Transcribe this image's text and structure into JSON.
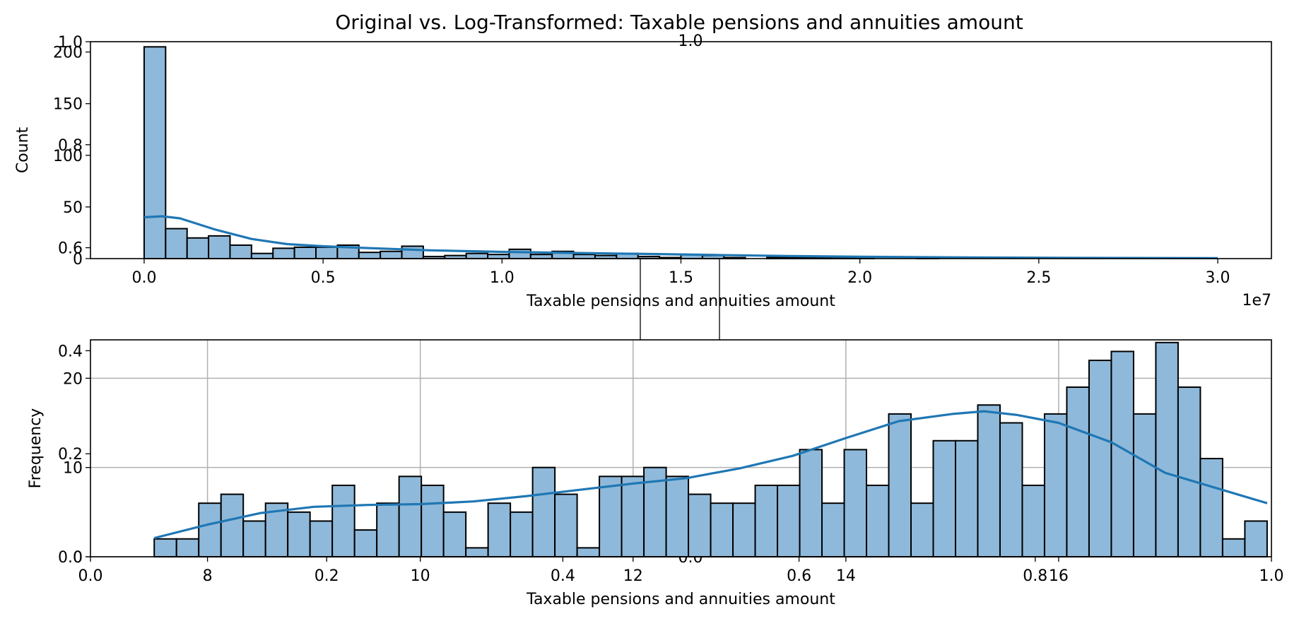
{
  "figure": {
    "title": "Original vs. Log-Transformed: Taxable pensions and annuities amount"
  },
  "background_axes": {
    "yticks": [
      "0.0",
      "0.2",
      "0.4",
      "0.6",
      "0.8",
      "1.0"
    ],
    "xticks": [
      "0.0",
      "0.2",
      "0.4",
      "0.6",
      "0.8",
      "1.0"
    ],
    "mid_xtick": "0.0",
    "mid_top_label": "1.0"
  },
  "colors": {
    "bar_fill": "#8fb9da",
    "bar_edge": "#000000",
    "kde_line": "#1f77b4",
    "grid": "#b0b0b0"
  },
  "chart_data": [
    {
      "type": "bar",
      "title": "",
      "xlabel": "Taxable pensions and annuities amount",
      "ylabel": "Count",
      "x_scale_label": "1e7",
      "xlim": [
        -0.15,
        3.15
      ],
      "ylim": [
        0,
        210
      ],
      "xticks": [
        0.0,
        0.5,
        1.0,
        1.5,
        2.0,
        2.5,
        3.0
      ],
      "xtick_labels": [
        "0.0",
        "0.5",
        "1.0",
        "1.5",
        "2.0",
        "2.5",
        "3.0"
      ],
      "yticks": [
        0,
        50,
        100,
        150,
        200
      ],
      "ytick_labels": [
        "0",
        "50",
        "100",
        "150",
        "200"
      ],
      "grid": false,
      "bin_start": 0.0,
      "bin_width": 0.06,
      "values": [
        205,
        29,
        20,
        22,
        13,
        5,
        10,
        11,
        11,
        13,
        6,
        7,
        12,
        2,
        3,
        5,
        4,
        9,
        4,
        7,
        4,
        3,
        5,
        2,
        1,
        4,
        3,
        1,
        0,
        1,
        1,
        1,
        1,
        1,
        0,
        0,
        1,
        0,
        0,
        0,
        0,
        0,
        0,
        0,
        0,
        0,
        0,
        0,
        0,
        0
      ],
      "kde": {
        "x": [
          0.0,
          0.05,
          0.1,
          0.2,
          0.3,
          0.4,
          0.5,
          0.6,
          0.8,
          1.0,
          1.2,
          1.4,
          1.6,
          1.8,
          2.0,
          2.3,
          2.6,
          3.0
        ],
        "y": [
          40,
          41,
          39,
          28,
          19,
          14,
          12,
          10.5,
          8,
          6.5,
          5.5,
          4.5,
          3.5,
          2.5,
          1.8,
          1.1,
          0.7,
          0.4
        ]
      }
    },
    {
      "type": "bar",
      "title": "",
      "xlabel": "Taxable pensions and annuities amount",
      "ylabel": "Frequency",
      "xlim": [
        6.9,
        18.0
      ],
      "ylim": [
        0,
        24.3
      ],
      "xticks": [
        8,
        10,
        12,
        14,
        16
      ],
      "xtick_labels": [
        "8",
        "10",
        "12",
        "14",
        "16"
      ],
      "yticks": [
        0,
        10,
        20
      ],
      "ytick_labels": [
        "0",
        "10",
        "20"
      ],
      "grid": true,
      "bin_start": 7.4994,
      "bin_width": 0.2092,
      "values": [
        2,
        2,
        6,
        7,
        4,
        6,
        5,
        4,
        8,
        3,
        6,
        9,
        8,
        5,
        1,
        6,
        5,
        10,
        7,
        1,
        9,
        9,
        10,
        9,
        7,
        6,
        6,
        8,
        8,
        12,
        6,
        12,
        8,
        16,
        6,
        13,
        13,
        17,
        15,
        8,
        16,
        19,
        22,
        23,
        16,
        24,
        19,
        11,
        2,
        4
      ],
      "kde": {
        "x": [
          7.5,
          8.0,
          8.5,
          9.0,
          9.5,
          10.0,
          10.5,
          11.0,
          11.5,
          12.0,
          12.5,
          13.0,
          13.5,
          14.0,
          14.5,
          15.0,
          15.3,
          15.6,
          16.0,
          16.5,
          17.0,
          17.96
        ],
        "y": [
          2.1,
          3.6,
          4.9,
          5.6,
          5.8,
          5.9,
          6.2,
          6.8,
          7.5,
          8.2,
          8.8,
          9.9,
          11.3,
          13.3,
          15.2,
          16.0,
          16.3,
          15.9,
          15.0,
          12.8,
          9.4,
          6.0
        ]
      }
    }
  ]
}
